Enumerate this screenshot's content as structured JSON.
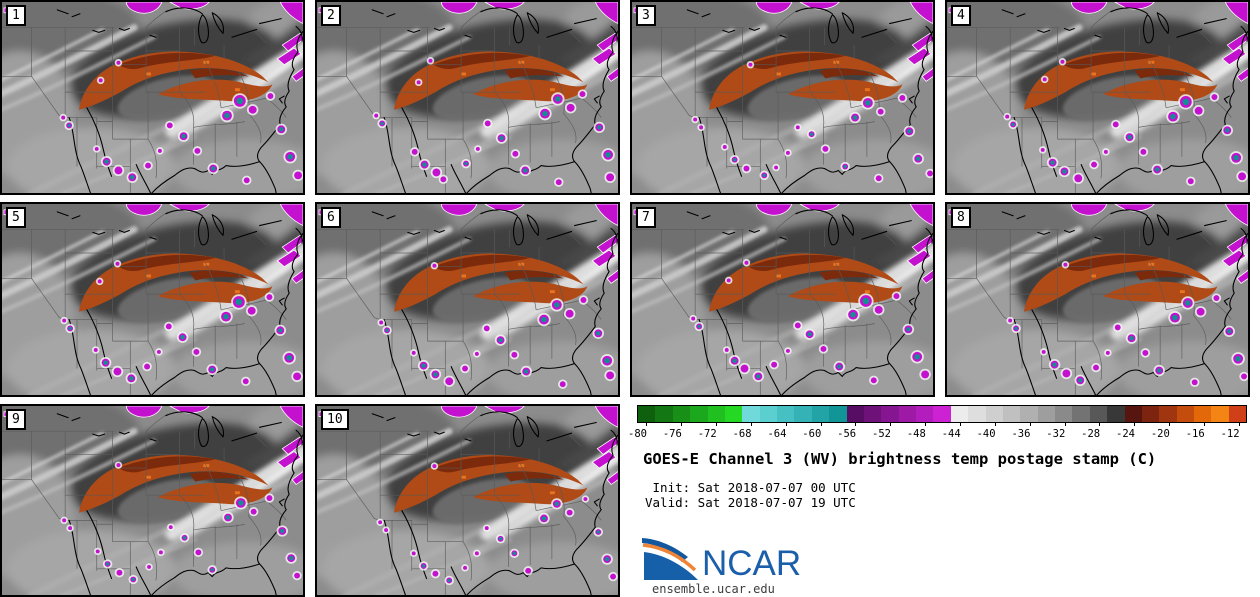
{
  "product": {
    "title": "GOES-E Channel 3 (WV) brightness temp postage stamp (C)",
    "init_line": " Init: Sat 2018-07-07 00 UTC",
    "valid_line": "Valid: Sat 2018-07-07 19 UTC",
    "site": "ensemble.ucar.edu",
    "logo_text": "NCAR"
  },
  "legend": {
    "colorbar": {
      "range_start": -80,
      "range_end": -10,
      "block_step": 2,
      "tick_step": 4,
      "tick_labels": [
        "-80",
        "-76",
        "-72",
        "-68",
        "-64",
        "-60",
        "-56",
        "-52",
        "-48",
        "-44",
        "-40",
        "-36",
        "-32",
        "-28",
        "-24",
        "-20",
        "-16",
        "-12"
      ],
      "colors": [
        "#0e5f0e",
        "#137713",
        "#189018",
        "#1ca81c",
        "#20c020",
        "#24d824",
        "#70dada",
        "#5bced0",
        "#47c0c3",
        "#34b2b5",
        "#22a4a7",
        "#129597",
        "#560d63",
        "#6e1179",
        "#851590",
        "#9d19a6",
        "#b41dbd",
        "#cc22d3",
        "#ececec",
        "#dedede",
        "#cfcfcf",
        "#c0c0c0",
        "#b0b0b0",
        "#9e9e9e",
        "#8a8a8a",
        "#737373",
        "#585858",
        "#383838",
        "#571510",
        "#7c2410",
        "#a03610",
        "#c44d0e",
        "#e2680a",
        "#f48414",
        "#d04018"
      ]
    }
  },
  "map_colors": {
    "base": "#8c8c8c",
    "dark_band": "#3f3f3f",
    "streak": "#cbcbcb",
    "plume": "#f4f4f4",
    "orange": "#b04a16",
    "dark_red": "#7c2a0c",
    "bright_orange": "#e8741f",
    "magenta": "#c411cf",
    "teal": "#118f93",
    "halo": "#f2f2f2",
    "state": "#5a5a5a",
    "coast": "#000000"
  },
  "panels": [
    {
      "label": "1",
      "storms": [
        [
          62,
          118,
          2,
          0
        ],
        [
          68,
          126,
          3,
          1
        ],
        [
          96,
          150,
          2,
          0
        ],
        [
          106,
          163,
          4,
          1
        ],
        [
          118,
          172,
          4,
          0
        ],
        [
          132,
          179,
          4,
          1
        ],
        [
          148,
          167,
          3,
          0
        ],
        [
          160,
          152,
          2,
          0
        ],
        [
          170,
          126,
          3,
          0
        ],
        [
          184,
          137,
          4,
          1
        ],
        [
          198,
          152,
          3,
          0
        ],
        [
          214,
          170,
          4,
          1
        ],
        [
          228,
          116,
          5,
          1
        ],
        [
          241,
          101,
          6,
          1
        ],
        [
          254,
          110,
          4,
          0
        ],
        [
          272,
          96,
          3,
          0
        ],
        [
          283,
          130,
          4,
          1
        ],
        [
          292,
          158,
          5,
          1
        ],
        [
          300,
          177,
          4,
          0
        ],
        [
          248,
          182,
          3,
          0
        ],
        [
          118,
          62,
          2,
          0
        ],
        [
          100,
          80,
          2,
          0
        ]
      ]
    },
    {
      "label": "2",
      "storms": [
        [
          60,
          116,
          2,
          0
        ],
        [
          66,
          124,
          3,
          1
        ],
        [
          99,
          153,
          3,
          0
        ],
        [
          109,
          166,
          4,
          1
        ],
        [
          121,
          174,
          4,
          0
        ],
        [
          128,
          181,
          3,
          0
        ],
        [
          151,
          165,
          3,
          1
        ],
        [
          163,
          150,
          2,
          0
        ],
        [
          173,
          124,
          3,
          0
        ],
        [
          187,
          139,
          4,
          1
        ],
        [
          201,
          155,
          3,
          0
        ],
        [
          211,
          172,
          4,
          1
        ],
        [
          231,
          114,
          5,
          1
        ],
        [
          244,
          99,
          5,
          1
        ],
        [
          257,
          108,
          4,
          0
        ],
        [
          269,
          94,
          3,
          0
        ],
        [
          286,
          128,
          4,
          1
        ],
        [
          295,
          156,
          5,
          1
        ],
        [
          297,
          179,
          4,
          0
        ],
        [
          245,
          184,
          3,
          0
        ],
        [
          115,
          60,
          2,
          0
        ],
        [
          103,
          82,
          2,
          0
        ]
      ]
    },
    {
      "label": "3",
      "storms": [
        [
          64,
          120,
          2,
          0
        ],
        [
          70,
          128,
          2,
          0
        ],
        [
          94,
          148,
          2,
          0
        ],
        [
          104,
          161,
          3,
          1
        ],
        [
          116,
          170,
          3,
          0
        ],
        [
          134,
          177,
          3,
          1
        ],
        [
          146,
          169,
          2,
          0
        ],
        [
          158,
          154,
          2,
          0
        ],
        [
          168,
          128,
          2,
          0
        ],
        [
          182,
          135,
          3,
          1
        ],
        [
          196,
          150,
          3,
          0
        ],
        [
          216,
          168,
          3,
          1
        ],
        [
          226,
          118,
          4,
          1
        ],
        [
          239,
          103,
          5,
          1
        ],
        [
          252,
          112,
          3,
          0
        ],
        [
          274,
          98,
          3,
          0
        ],
        [
          281,
          132,
          4,
          1
        ],
        [
          290,
          160,
          4,
          1
        ],
        [
          302,
          175,
          3,
          0
        ],
        [
          250,
          180,
          3,
          0
        ],
        [
          120,
          64,
          2,
          0
        ]
      ]
    },
    {
      "label": "4",
      "storms": [
        [
          61,
          117,
          2,
          0
        ],
        [
          67,
          125,
          3,
          1
        ],
        [
          97,
          151,
          2,
          0
        ],
        [
          107,
          164,
          4,
          1
        ],
        [
          119,
          173,
          4,
          1
        ],
        [
          133,
          180,
          4,
          0
        ],
        [
          149,
          166,
          3,
          0
        ],
        [
          161,
          153,
          2,
          0
        ],
        [
          171,
          125,
          3,
          0
        ],
        [
          185,
          138,
          4,
          1
        ],
        [
          199,
          153,
          3,
          0
        ],
        [
          213,
          171,
          4,
          1
        ],
        [
          229,
          117,
          5,
          1
        ],
        [
          242,
          102,
          6,
          1
        ],
        [
          255,
          111,
          4,
          0
        ],
        [
          271,
          97,
          3,
          0
        ],
        [
          284,
          131,
          4,
          1
        ],
        [
          293,
          159,
          5,
          1
        ],
        [
          299,
          178,
          4,
          0
        ],
        [
          247,
          183,
          3,
          0
        ],
        [
          117,
          61,
          2,
          0
        ],
        [
          99,
          79,
          2,
          0
        ]
      ]
    },
    {
      "label": "5",
      "storms": [
        [
          63,
          119,
          2,
          0
        ],
        [
          69,
          127,
          3,
          1
        ],
        [
          95,
          149,
          2,
          0
        ],
        [
          105,
          162,
          4,
          1
        ],
        [
          117,
          171,
          4,
          0
        ],
        [
          131,
          178,
          4,
          1
        ],
        [
          147,
          166,
          3,
          0
        ],
        [
          159,
          151,
          2,
          0
        ],
        [
          169,
          125,
          3,
          0
        ],
        [
          183,
          136,
          4,
          1
        ],
        [
          197,
          151,
          3,
          0
        ],
        [
          213,
          169,
          4,
          1
        ],
        [
          227,
          115,
          5,
          1
        ],
        [
          240,
          100,
          6,
          1
        ],
        [
          253,
          109,
          4,
          0
        ],
        [
          271,
          95,
          3,
          0
        ],
        [
          282,
          129,
          4,
          1
        ],
        [
          291,
          157,
          5,
          1
        ],
        [
          299,
          176,
          4,
          0
        ],
        [
          247,
          181,
          3,
          0
        ],
        [
          117,
          61,
          2,
          0
        ],
        [
          99,
          79,
          2,
          0
        ]
      ]
    },
    {
      "label": "6",
      "storms": [
        [
          65,
          121,
          2,
          0
        ],
        [
          71,
          129,
          3,
          1
        ],
        [
          98,
          152,
          2,
          0
        ],
        [
          108,
          165,
          4,
          1
        ],
        [
          120,
          174,
          4,
          1
        ],
        [
          134,
          181,
          4,
          0
        ],
        [
          150,
          168,
          3,
          0
        ],
        [
          162,
          153,
          2,
          0
        ],
        [
          172,
          127,
          3,
          0
        ],
        [
          186,
          139,
          4,
          1
        ],
        [
          200,
          154,
          3,
          0
        ],
        [
          212,
          171,
          4,
          1
        ],
        [
          230,
          118,
          5,
          1
        ],
        [
          243,
          103,
          5,
          1
        ],
        [
          256,
          112,
          4,
          0
        ],
        [
          270,
          98,
          3,
          0
        ],
        [
          285,
          132,
          4,
          1
        ],
        [
          294,
          160,
          5,
          1
        ],
        [
          297,
          175,
          4,
          0
        ],
        [
          249,
          184,
          3,
          0
        ],
        [
          119,
          63,
          2,
          0
        ]
      ]
    },
    {
      "label": "7",
      "storms": [
        [
          62,
          117,
          2,
          0
        ],
        [
          68,
          125,
          3,
          1
        ],
        [
          96,
          149,
          2,
          0
        ],
        [
          104,
          160,
          4,
          1
        ],
        [
          114,
          168,
          4,
          0
        ],
        [
          128,
          176,
          4,
          1
        ],
        [
          144,
          164,
          3,
          0
        ],
        [
          158,
          150,
          2,
          0
        ],
        [
          168,
          124,
          3,
          0
        ],
        [
          180,
          133,
          4,
          1
        ],
        [
          194,
          148,
          3,
          0
        ],
        [
          210,
          166,
          4,
          1
        ],
        [
          224,
          113,
          5,
          1
        ],
        [
          237,
          99,
          6,
          1
        ],
        [
          250,
          108,
          4,
          0
        ],
        [
          268,
          94,
          3,
          0
        ],
        [
          280,
          128,
          4,
          1
        ],
        [
          289,
          156,
          5,
          1
        ],
        [
          297,
          174,
          4,
          0
        ],
        [
          245,
          180,
          3,
          0
        ],
        [
          116,
          60,
          2,
          0
        ],
        [
          98,
          78,
          2,
          0
        ]
      ]
    },
    {
      "label": "8",
      "storms": [
        [
          64,
          119,
          2,
          0
        ],
        [
          70,
          127,
          3,
          1
        ],
        [
          98,
          151,
          2,
          0
        ],
        [
          109,
          164,
          4,
          1
        ],
        [
          121,
          173,
          4,
          0
        ],
        [
          135,
          180,
          4,
          1
        ],
        [
          151,
          167,
          3,
          0
        ],
        [
          163,
          152,
          2,
          0
        ],
        [
          173,
          126,
          3,
          0
        ],
        [
          187,
          137,
          4,
          1
        ],
        [
          201,
          152,
          3,
          0
        ],
        [
          215,
          170,
          4,
          1
        ],
        [
          231,
          116,
          5,
          1
        ],
        [
          244,
          101,
          5,
          1
        ],
        [
          257,
          110,
          4,
          0
        ],
        [
          273,
          96,
          3,
          0
        ],
        [
          286,
          130,
          4,
          1
        ],
        [
          295,
          158,
          5,
          1
        ],
        [
          301,
          176,
          3,
          0
        ],
        [
          251,
          182,
          3,
          0
        ],
        [
          120,
          62,
          2,
          0
        ]
      ]
    },
    {
      "label": "9",
      "storms": [
        [
          63,
          118,
          2,
          0
        ],
        [
          69,
          126,
          2,
          0
        ],
        [
          97,
          150,
          2,
          0
        ],
        [
          107,
          163,
          3,
          1
        ],
        [
          119,
          172,
          3,
          0
        ],
        [
          133,
          179,
          3,
          1
        ],
        [
          149,
          166,
          2,
          0
        ],
        [
          161,
          151,
          2,
          0
        ],
        [
          171,
          125,
          2,
          0
        ],
        [
          185,
          136,
          3,
          1
        ],
        [
          199,
          151,
          3,
          0
        ],
        [
          213,
          169,
          3,
          1
        ],
        [
          229,
          115,
          4,
          1
        ],
        [
          242,
          100,
          5,
          1
        ],
        [
          255,
          109,
          3,
          0
        ],
        [
          271,
          95,
          3,
          0
        ],
        [
          284,
          129,
          4,
          1
        ],
        [
          293,
          157,
          4,
          1
        ],
        [
          299,
          175,
          3,
          0
        ],
        [
          118,
          61,
          2,
          0
        ]
      ]
    },
    {
      "label": "10",
      "storms": [
        [
          64,
          120,
          2,
          0
        ],
        [
          70,
          128,
          2,
          0
        ],
        [
          98,
          152,
          2,
          0
        ],
        [
          108,
          165,
          3,
          1
        ],
        [
          120,
          173,
          3,
          0
        ],
        [
          134,
          180,
          3,
          1
        ],
        [
          150,
          167,
          2,
          0
        ],
        [
          162,
          152,
          2,
          0
        ],
        [
          172,
          126,
          2,
          0
        ],
        [
          186,
          137,
          3,
          1
        ],
        [
          200,
          152,
          3,
          1
        ],
        [
          214,
          170,
          3,
          0
        ],
        [
          230,
          116,
          4,
          1
        ],
        [
          243,
          101,
          4,
          1
        ],
        [
          256,
          110,
          3,
          0
        ],
        [
          272,
          96,
          2,
          0
        ],
        [
          285,
          130,
          3,
          1
        ],
        [
          294,
          158,
          4,
          1
        ],
        [
          300,
          176,
          3,
          0
        ],
        [
          119,
          62,
          2,
          0
        ]
      ]
    }
  ]
}
